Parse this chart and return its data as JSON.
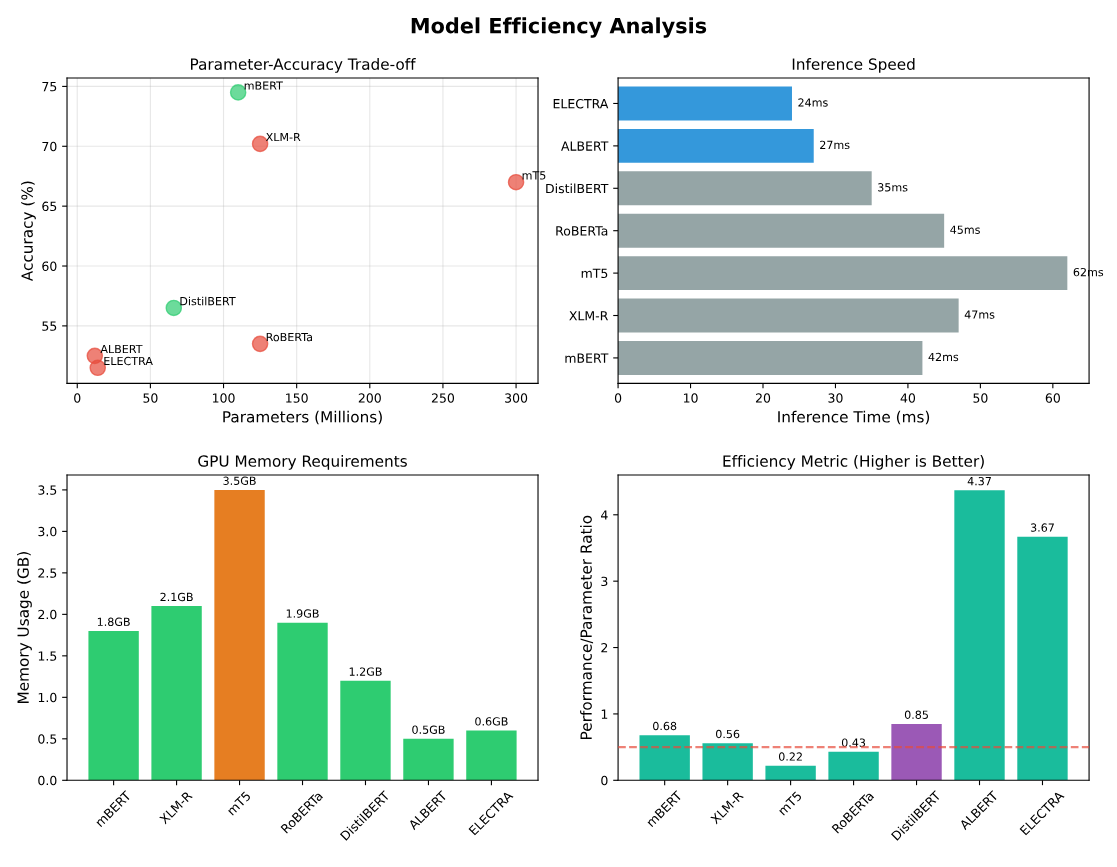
{
  "chart_data": [
    {
      "type": "scatter",
      "title": "Parameter-Accuracy Trade-off",
      "xlabel": "Parameters (Millions)",
      "ylabel": "Accuracy (%)",
      "x": [
        110,
        125,
        300,
        125,
        66,
        12,
        14
      ],
      "values": [
        74.5,
        70.2,
        67,
        53.5,
        56.5,
        52.5,
        51.5
      ],
      "colors": [
        "#2ecc71",
        "#e74c3c",
        "#e74c3c",
        "#e74c3c",
        "#2ecc71",
        "#e74c3c",
        "#e74c3c"
      ],
      "annotations": [
        "Model Efficiency Analysis",
        {
          "text": "mBERT",
          "x": 110,
          "y": 74.5
        },
        {
          "text": "XLM-R",
          "x": 125,
          "y": 70.2
        },
        {
          "text": "mT5",
          "x": 300,
          "y": 67
        },
        {
          "text": "RoBERTa",
          "x": 125,
          "y": 53.5
        },
        {
          "text": "DistilBERT",
          "x": 66,
          "y": 56.5
        },
        {
          "text": "ALBERT",
          "x": 12,
          "y": 52.5
        },
        {
          "text": "ELECTRA",
          "x": 14,
          "y": 51.5
        }
      ],
      "xlim": [
        -7,
        315
      ],
      "xticks": [
        0,
        50,
        100,
        150,
        200,
        250,
        300
      ],
      "ylim": [
        50.2,
        75.7
      ],
      "yticks": [
        55,
        60,
        65,
        70,
        75
      ],
      "grid": true
    },
    {
      "type": "bar",
      "orientation": "horizontal",
      "title": "Inference Speed",
      "xlabel": "Inference Time (ms)",
      "categories": [
        "ELECTRA",
        "ALBERT",
        "DistilBERT",
        "RoBERTa",
        "mT5",
        "XLM-R",
        "mBERT"
      ],
      "values": [
        24,
        27,
        35,
        45,
        62,
        47,
        42
      ],
      "colors": [
        "#3498db",
        "#3498db",
        "#95a5a6",
        "#95a5a6",
        "#95a5a6",
        "#95a5a6",
        "#95a5a6"
      ],
      "value_labels": [
        "24ms",
        "27ms",
        "35ms",
        "45ms",
        "62ms",
        "47ms",
        "42ms"
      ],
      "xlim": [
        0,
        65
      ],
      "xticks": [
        0,
        10,
        20,
        30,
        40,
        50,
        60
      ]
    },
    {
      "type": "bar",
      "title": "GPU Memory Requirements",
      "ylabel": "Memory Usage (GB)",
      "categories": [
        "mBERT",
        "XLM-R",
        "mT5",
        "RoBERTa",
        "DistilBERT",
        "ALBERT",
        "ELECTRA"
      ],
      "values": [
        1.8,
        2.1,
        3.5,
        1.9,
        1.2,
        0.5,
        0.6
      ],
      "colors": [
        "#2ecc71",
        "#2ecc71",
        "#e67e22",
        "#2ecc71",
        "#2ecc71",
        "#2ecc71",
        "#2ecc71"
      ],
      "value_labels": [
        "1.8GB",
        "2.1GB",
        "3.5GB",
        "1.9GB",
        "1.2GB",
        "0.5GB",
        "0.6GB"
      ],
      "ylim": [
        0,
        3.68
      ],
      "yticks": [
        {
          "value": 0,
          "label": "0.0"
        },
        0.5,
        {
          "value": 1,
          "label": "1.0"
        },
        1.5,
        {
          "value": 2,
          "label": "2.0"
        },
        2.5,
        {
          "value": 3,
          "label": "3.0"
        },
        3.5
      ]
    },
    {
      "type": "bar",
      "title": "Efficiency Metric (Higher is Better)",
      "ylabel": "Performance/Parameter Ratio",
      "categories": [
        "mBERT",
        "XLM-R",
        "mT5",
        "RoBERTa",
        "DistilBERT",
        "ALBERT",
        "ELECTRA"
      ],
      "values": [
        0.68,
        0.56,
        0.22,
        0.43,
        0.85,
        4.37,
        3.67
      ],
      "colors": [
        "#1abc9c",
        "#1abc9c",
        "#1abc9c",
        "#1abc9c",
        "#9b59b6",
        "#1abc9c",
        "#1abc9c"
      ],
      "data_labels": true,
      "ref_lines": [
        {
          "axis": "y",
          "value": 0.5,
          "color": "#e74c3c",
          "line_style": "dashed"
        }
      ],
      "ylim": [
        0,
        4.6
      ],
      "yticks": [
        0,
        1,
        2,
        3,
        4
      ]
    }
  ]
}
